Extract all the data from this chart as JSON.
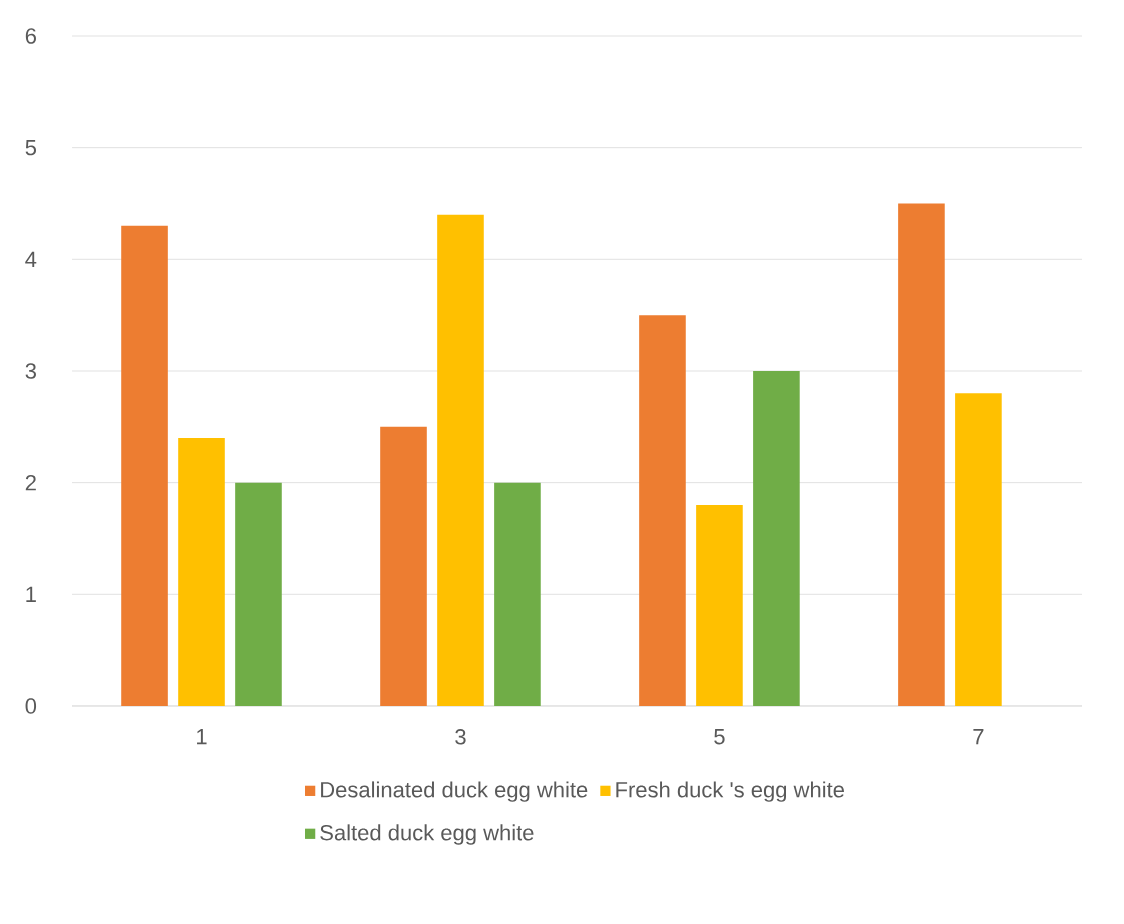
{
  "chart_data": {
    "type": "bar",
    "categories": [
      "1",
      "3",
      "5",
      "7"
    ],
    "series": [
      {
        "name": "Desalinated duck egg white",
        "color": "#ed7d31",
        "values": [
          4.3,
          2.5,
          3.5,
          4.5
        ]
      },
      {
        "name": "Fresh duck 's egg white",
        "color": "#ffc000",
        "values": [
          2.4,
          4.4,
          1.8,
          2.8
        ]
      },
      {
        "name": "Salted duck egg white",
        "color": "#70ad47",
        "values": [
          2.0,
          2.0,
          3.0,
          null
        ]
      }
    ],
    "ylim": [
      0,
      6
    ],
    "yticks": [
      0,
      1,
      2,
      3,
      4,
      5,
      6
    ],
    "grid": "y",
    "legend": "bottom"
  }
}
